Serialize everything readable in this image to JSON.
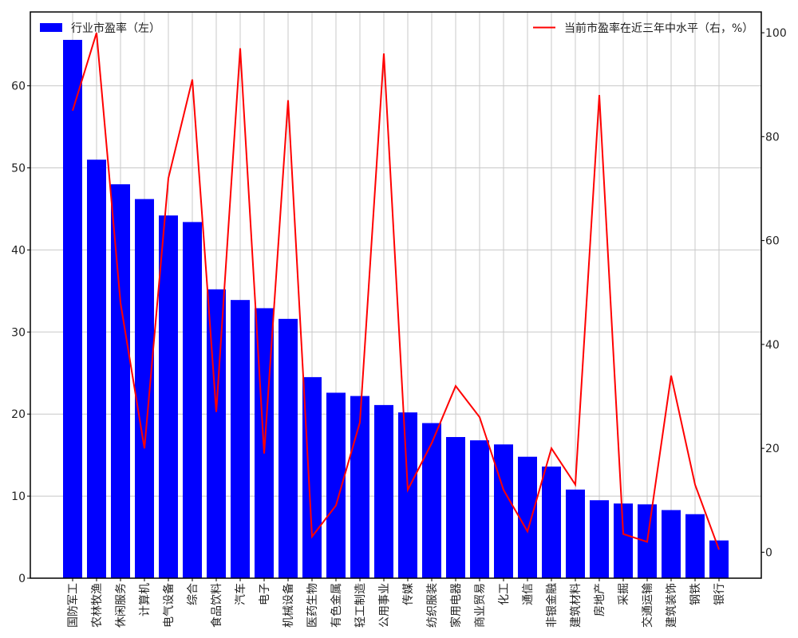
{
  "chart_data": {
    "type": "bar",
    "categories": [
      "国防军工",
      "农林牧渔",
      "休闲服务",
      "计算机",
      "电气设备",
      "综合",
      "食品饮料",
      "汽车",
      "电子",
      "机械设备",
      "医药生物",
      "有色金属",
      "轻工制造",
      "公用事业",
      "传媒",
      "纺织服装",
      "家用电器",
      "商业贸易",
      "化工",
      "通信",
      "非银金融",
      "建筑材料",
      "房地产",
      "采掘",
      "交通运输",
      "建筑装饰",
      "钢铁",
      "银行"
    ],
    "series": [
      {
        "name": "行业市盈率（左）",
        "type": "bar",
        "axis": "left",
        "color": "#0000ff",
        "values": [
          65.6,
          51.0,
          48.0,
          46.2,
          44.2,
          43.4,
          35.2,
          33.9,
          32.9,
          31.6,
          24.5,
          22.6,
          22.2,
          21.1,
          20.2,
          18.9,
          17.2,
          16.8,
          16.3,
          14.8,
          13.6,
          10.8,
          9.5,
          9.1,
          9.0,
          8.3,
          7.8,
          4.6
        ]
      },
      {
        "name": "当前市盈率在近三年中水平（右，%）",
        "type": "line",
        "axis": "right",
        "color": "#ff0000",
        "values": [
          85,
          100,
          48,
          20,
          72,
          91,
          27,
          97,
          19,
          87,
          3,
          9,
          25,
          96,
          12,
          21,
          32,
          26,
          12,
          4,
          20,
          13,
          88,
          3.5,
          2,
          34,
          13,
          0.5
        ]
      }
    ],
    "ylim_left": [
      0,
      69
    ],
    "ylim_right": [
      -5,
      104
    ],
    "yticks_left": [
      0,
      10,
      20,
      30,
      40,
      50,
      60
    ],
    "yticks_right": [
      0,
      20,
      40,
      60,
      80,
      100
    ],
    "grid": true,
    "legend": {
      "left": {
        "label": "行业市盈率（左）",
        "placement": "top-left"
      },
      "right": {
        "label": "当前市盈率在近三年中水平（右，%）",
        "placement": "top-right"
      }
    }
  }
}
